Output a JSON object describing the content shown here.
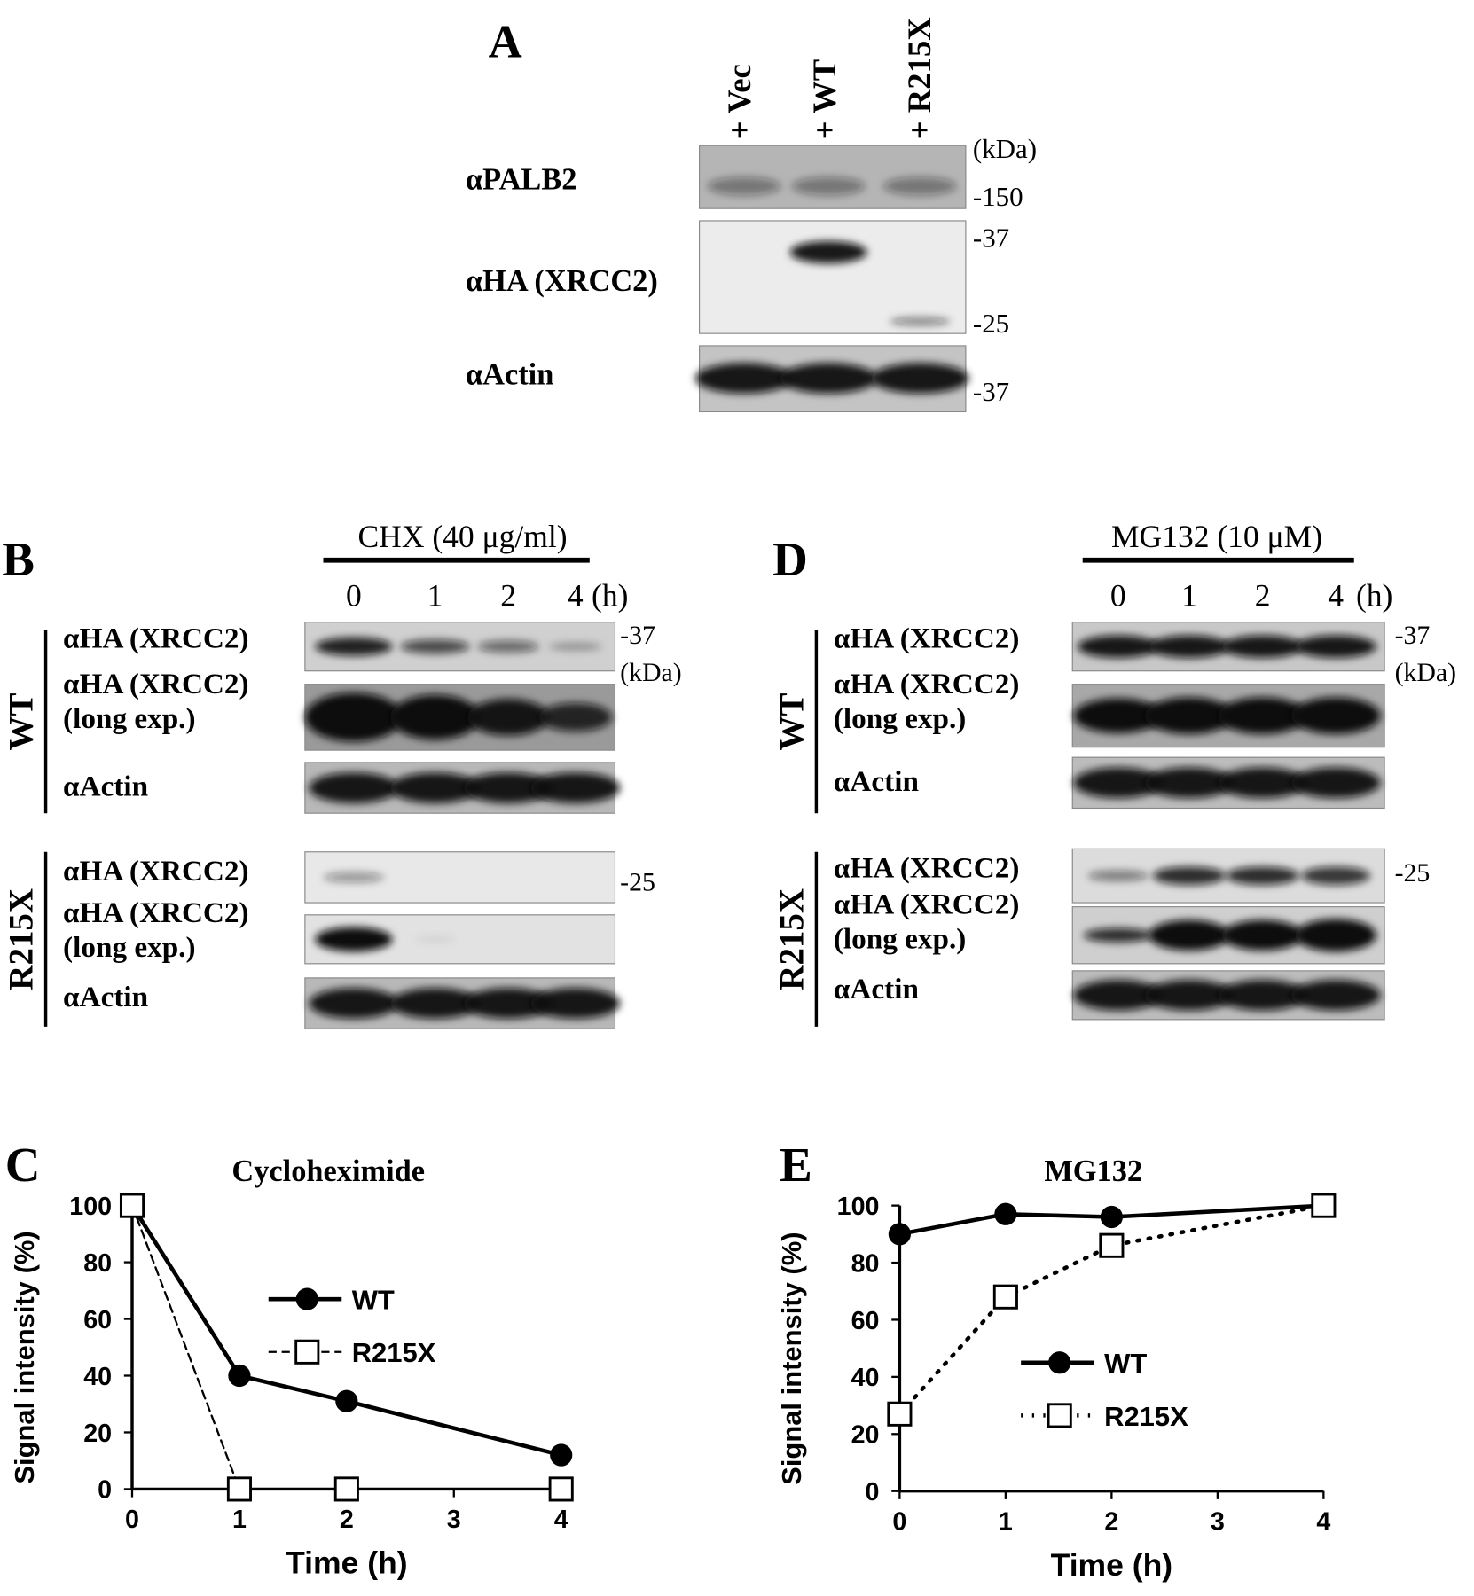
{
  "panel_a": {
    "label": "A",
    "lanes": [
      "+ Vec",
      "+ WT",
      "+ R215X"
    ],
    "rows": [
      "αPALB2",
      "αHA (XRCC2)",
      "αActin"
    ],
    "markers": [
      "(kDa)",
      "-150",
      "-37",
      "-25",
      "-37"
    ]
  },
  "panel_b": {
    "label": "B",
    "treatment": "CHX (40 μg/ml)",
    "timepoints": [
      "0",
      "1",
      "2",
      "4"
    ],
    "unit": "(h)",
    "groups": [
      {
        "name": "WT",
        "rows": [
          [
            "αHA (XRCC2)"
          ],
          [
            "αHA (XRCC2)",
            "(long exp.)"
          ],
          [
            "αActin"
          ]
        ]
      },
      {
        "name": "R215X",
        "rows": [
          [
            "αHA (XRCC2)"
          ],
          [
            "αHA (XRCC2)",
            "(long exp.)"
          ],
          [
            "αActin"
          ]
        ]
      }
    ],
    "markers": [
      "-37",
      "(kDa)",
      "-25"
    ]
  },
  "panel_d": {
    "label": "D",
    "treatment": "MG132 (10 μM)",
    "timepoints": [
      "0",
      "1",
      "2",
      "4"
    ],
    "unit": "(h)",
    "groups": [
      {
        "name": "WT",
        "rows": [
          [
            "αHA (XRCC2)"
          ],
          [
            "αHA (XRCC2)",
            "(long exp.)"
          ],
          [
            "αActin"
          ]
        ]
      },
      {
        "name": "R215X",
        "rows": [
          [
            "αHA (XRCC2)"
          ],
          [
            "αHA (XRCC2)",
            "(long exp.)"
          ],
          [
            "αActin"
          ]
        ]
      }
    ],
    "markers": [
      "-37",
      "(kDa)",
      "-25"
    ]
  },
  "chart_data": [
    {
      "type": "line",
      "panel_label": "C",
      "title": "Cycloheximide",
      "x_label": "Time (h)",
      "y_label": "Signal intensity  (%)",
      "x": [
        0,
        1,
        2,
        4
      ],
      "xlim": [
        0,
        4
      ],
      "xticks": [
        0,
        1,
        2,
        3,
        4
      ],
      "ylim": [
        0,
        100
      ],
      "yticks": [
        0,
        20,
        40,
        60,
        80,
        100
      ],
      "legend": "center right",
      "series": [
        {
          "name": "WT",
          "color": "#000000",
          "line_style": "solid",
          "marker": "circle",
          "values": [
            100,
            40,
            31,
            12
          ]
        },
        {
          "name": "R215X",
          "color": "#000000",
          "line_style": "dashed",
          "marker": "square",
          "values": [
            100,
            0,
            0,
            0
          ]
        }
      ]
    },
    {
      "type": "line",
      "panel_label": "E",
      "title": "MG132",
      "x_label": "Time (h)",
      "y_label": "Signal intensity  (%)",
      "x": [
        0,
        1,
        2,
        4
      ],
      "xlim": [
        0,
        4
      ],
      "xticks": [
        0,
        1,
        2,
        3,
        4
      ],
      "ylim": [
        0,
        100
      ],
      "yticks": [
        0,
        20,
        40,
        60,
        80,
        100
      ],
      "legend": "lower center",
      "series": [
        {
          "name": "WT",
          "color": "#000000",
          "line_style": "solid",
          "marker": "circle",
          "values": [
            90,
            97,
            96,
            100
          ]
        },
        {
          "name": "R215X",
          "color": "#000000",
          "line_style": "dotted",
          "marker": "square",
          "values": [
            27,
            68,
            86,
            100
          ]
        }
      ]
    }
  ]
}
